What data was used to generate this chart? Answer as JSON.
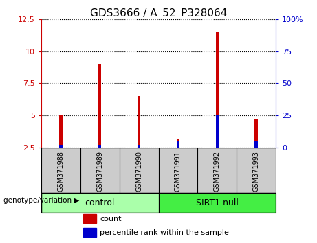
{
  "title": "GDS3666 / A_52_P328064",
  "samples": [
    "GSM371988",
    "GSM371989",
    "GSM371990",
    "GSM371991",
    "GSM371992",
    "GSM371993"
  ],
  "count_values": [
    5.0,
    9.0,
    6.5,
    3.1,
    11.5,
    4.7
  ],
  "percentile_values": [
    2.0,
    2.0,
    2.0,
    5.0,
    25.0,
    5.0
  ],
  "count_color": "#cc0000",
  "percentile_color": "#0000cc",
  "left_yticks": [
    2.5,
    5.0,
    7.5,
    10.0,
    12.5
  ],
  "right_yticks": [
    0,
    25,
    50,
    75,
    100
  ],
  "left_ylim": [
    2.5,
    12.5
  ],
  "right_ylim": [
    0,
    100
  ],
  "groups": [
    {
      "label": "control",
      "span": [
        0,
        2
      ],
      "color": "#aaffaa"
    },
    {
      "label": "SIRT1 null",
      "span": [
        3,
        5
      ],
      "color": "#44ee44"
    }
  ],
  "group_label": "genotype/variation",
  "legend_items": [
    {
      "label": "count",
      "color": "#cc0000"
    },
    {
      "label": "percentile rank within the sample",
      "color": "#0000cc"
    }
  ],
  "bar_width": 0.08,
  "sample_bg_color": "#cccccc",
  "plot_bg": "#ffffff",
  "title_fontsize": 11,
  "tick_fontsize": 8,
  "sample_fontsize": 7,
  "group_fontsize": 9,
  "legend_fontsize": 8
}
